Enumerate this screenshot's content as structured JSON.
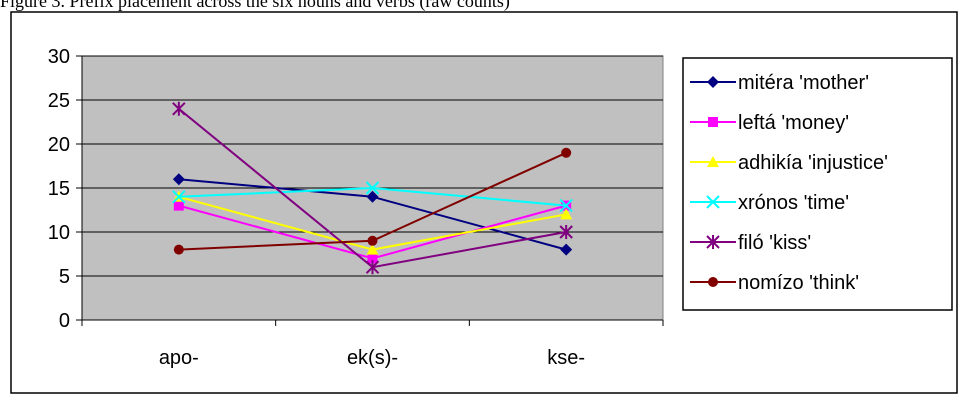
{
  "caption": "Figure 3. Prefix placement across the six nouns and verbs (raw counts)",
  "chart_data": {
    "type": "line",
    "title": "",
    "xlabel": "",
    "ylabel": "",
    "categories": [
      "apo-",
      "ek(s)-",
      "kse-"
    ],
    "ylim": [
      0,
      30
    ],
    "yticks": [
      0,
      5,
      10,
      15,
      20,
      25,
      30
    ],
    "grid": "horizontal",
    "plot_background": "#c0c0c0",
    "legend_position": "right",
    "series": [
      {
        "name": "mitéra 'mother'",
        "values": [
          16,
          14,
          8
        ],
        "color": "#000080",
        "marker": "diamond"
      },
      {
        "name": "leftá 'money'",
        "values": [
          13,
          7,
          13
        ],
        "color": "#ff00ff",
        "marker": "square"
      },
      {
        "name": "adhikía 'injustice'",
        "values": [
          14,
          8,
          12
        ],
        "color": "#ffff00",
        "marker": "triangle"
      },
      {
        "name": "xrónos 'time'",
        "values": [
          14,
          15,
          13
        ],
        "color": "#00ffff",
        "marker": "x"
      },
      {
        "name": "filó 'kiss'",
        "values": [
          24,
          6,
          10
        ],
        "color": "#800080",
        "marker": "asterisk"
      },
      {
        "name": "nomízo 'think'",
        "values": [
          8,
          9,
          19
        ],
        "color": "#800000",
        "marker": "circle"
      }
    ]
  }
}
